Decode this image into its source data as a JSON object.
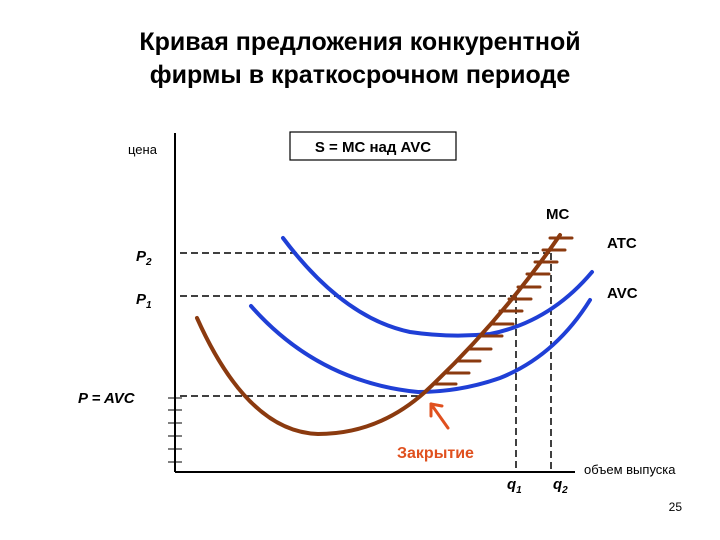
{
  "title": {
    "line1": "Кривая предложения конкурентной",
    "line2": "фирмы в краткосрочном периоде"
  },
  "axes": {
    "y_label": "цена",
    "x_label": "объем выпуска"
  },
  "formula_box": "S = MC над AVC",
  "curves": {
    "mc": "MC",
    "atc": "ATC",
    "avc": "AVC"
  },
  "price_levels": {
    "p2_letter": "P",
    "p2_sub": "2",
    "p1_letter": "P",
    "p1_sub": "1",
    "p_avc": "P = AVC"
  },
  "quantities": {
    "q1_letter": "q",
    "q1_sub": "1",
    "q2_letter": "q",
    "q2_sub": "2"
  },
  "shutdown_label": "Закрытие",
  "page_number": "25",
  "colors": {
    "blue_curves": "#1f3fd6",
    "mc_curve": "#8b3a0f",
    "shutdown_text": "#e0501e",
    "axis": "#000000"
  }
}
